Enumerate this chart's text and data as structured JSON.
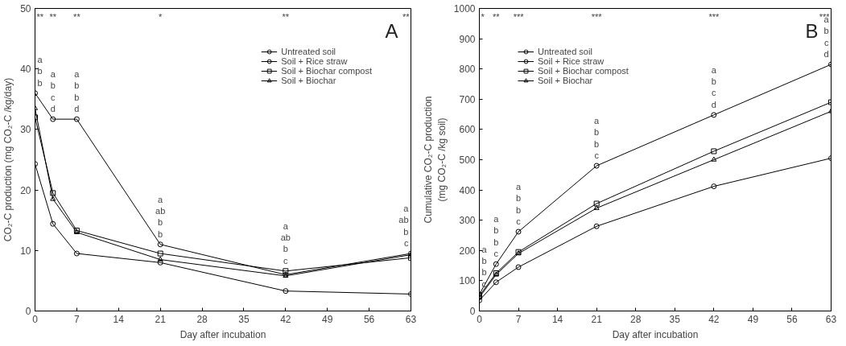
{
  "chart_data": [
    {
      "type": "line",
      "xlabel": "Day after incubation",
      "ylabel": "CO₂-C production (mg CO₂-C /kg/day)",
      "x": [
        0,
        3,
        7,
        21,
        42,
        63
      ],
      "xlim": [
        0,
        63
      ],
      "xticks": [
        0,
        7,
        14,
        21,
        28,
        35,
        42,
        49,
        56,
        63
      ],
      "ylim": [
        0,
        50
      ],
      "yticks": [
        0,
        10,
        20,
        30,
        40,
        50
      ],
      "grid": false,
      "legend": "top right",
      "line_style": "solid",
      "series": [
        {
          "name": "Untreated soil",
          "color": "#000000",
          "marker": "circle",
          "values": [
            24.3,
            14.4,
            9.5,
            8.0,
            3.3,
            2.8
          ]
        },
        {
          "name": "Soil + Rice straw",
          "color": "#000000",
          "marker": "circle",
          "values": [
            36,
            31.7,
            31.7,
            11.0,
            6.0,
            9.5
          ]
        },
        {
          "name": "Soil + Biochar compost",
          "color": "#000000",
          "marker": "square",
          "values": [
            32,
            19.5,
            13.3,
            9.5,
            6.6,
            8.8
          ]
        },
        {
          "name": "Soil + Biochar",
          "color": "#000000",
          "marker": "triangle",
          "values": [
            33.5,
            18.5,
            13,
            8.5,
            5.8,
            9.3
          ]
        }
      ],
      "annotations": [
        "A",
        "**",
        "**",
        "**",
        "*",
        "**",
        "**",
        "a\nb\nb",
        "a\nb\nc\nd",
        "a\nb\nb\nd",
        "a\nab\nb\nb",
        "a\nab\nb\nc",
        "a\nab\nb\nc"
      ]
    },
    {
      "type": "line",
      "xlabel": "Day after incubation",
      "ylabel": "Cumulative CO₂-C production\n(mg CO₂-C /kg soil)",
      "x": [
        0,
        3,
        7,
        21,
        42,
        63
      ],
      "xlim": [
        0,
        63
      ],
      "xticks": [
        0,
        7,
        14,
        21,
        28,
        35,
        42,
        49,
        56,
        63
      ],
      "ylim": [
        0,
        1000
      ],
      "yticks": [
        0,
        100,
        200,
        300,
        400,
        500,
        600,
        700,
        800,
        900,
        1000
      ],
      "grid": false,
      "legend": "top left",
      "line_style": "solid",
      "series": [
        {
          "name": "Untreated soil",
          "color": "#000000",
          "marker": "circle",
          "values": [
            35,
            95,
            145,
            280,
            412,
            505
          ]
        },
        {
          "name": "Soil + Rice straw",
          "color": "#000000",
          "marker": "circle",
          "values": [
            55,
            155,
            262,
            480,
            648,
            815
          ]
        },
        {
          "name": "Soil + Biochar compost",
          "color": "#000000",
          "marker": "square",
          "values": [
            50,
            125,
            195,
            355,
            528,
            690
          ]
        },
        {
          "name": "Soil + Biochar",
          "color": "#000000",
          "marker": "triangle",
          "values": [
            45,
            120,
            190,
            340,
            500,
            660
          ]
        }
      ],
      "annotations": [
        "B",
        "*",
        "**",
        "***",
        "***",
        "***",
        "***",
        "a\nb\nb\nc",
        "a\nb\nb\nc",
        "a\nb\nb\nc",
        "a\nb\nb\nc",
        "a\nb\nc\nd",
        "a\nb\nc\nd"
      ]
    }
  ]
}
